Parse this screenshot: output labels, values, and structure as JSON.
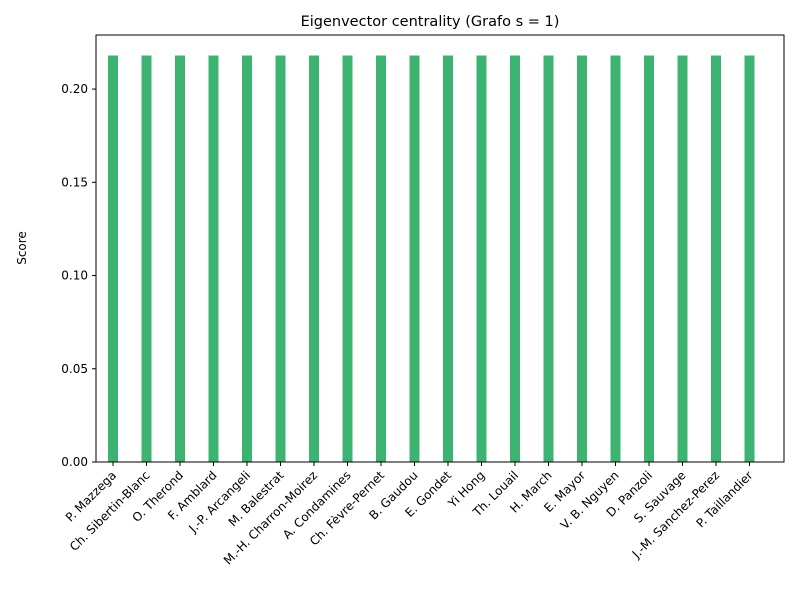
{
  "chart_data": {
    "type": "bar",
    "title": "Eigenvector centrality (Grafo s = 1)",
    "xlabel": "",
    "ylabel": "Score",
    "categories": [
      "P. Mazzega",
      "Ch. Sibertin-Blanc",
      "O. Therond",
      "F. Amblard",
      "J.-P. Arcangeli",
      "M. Balestrat",
      "M.-H. Charron-Moirez",
      "A. Condamines",
      "Ch. Fèvre-Pernet",
      "B. Gaudou",
      "E. Gondet",
      "Yi Hong",
      "Th. Louail",
      "H. March",
      "E. Mayor",
      "V. B. Nguyen",
      "D. Panzoli",
      "S. Sauvage",
      "J.-M. Sanchez-Perez",
      "P. Taillandier"
    ],
    "values": [
      0.218,
      0.218,
      0.218,
      0.218,
      0.218,
      0.218,
      0.218,
      0.218,
      0.218,
      0.218,
      0.218,
      0.218,
      0.218,
      0.218,
      0.218,
      0.218,
      0.218,
      0.218,
      0.218,
      0.218
    ],
    "ylim": [
      0,
      0.229
    ],
    "yticks": [
      0.0,
      0.05,
      0.1,
      0.15,
      0.2
    ],
    "ytick_labels": [
      "0.00",
      "0.05",
      "0.10",
      "0.15",
      "0.20"
    ],
    "bar_color": "#3cb371",
    "grid": false,
    "legend": "none"
  }
}
